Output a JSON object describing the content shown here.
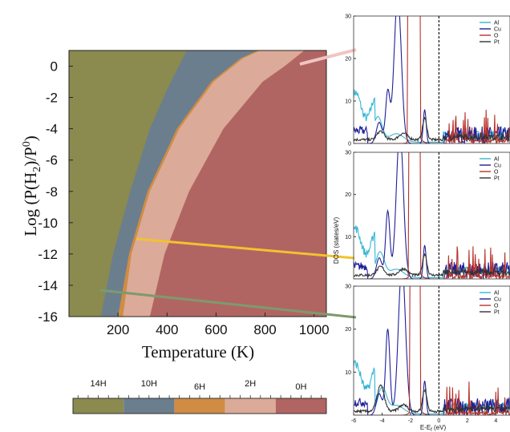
{
  "phase_diagram": {
    "ylabel": "Log (P(H2)/P0)",
    "ylabel_parts": {
      "main": "Log (P(H",
      "sub": "2",
      "mid": ")/P",
      "sup": "0",
      "end": ")"
    },
    "xlabel": "Temperature (K)",
    "x_ticks": [
      "200",
      "400",
      "600",
      "800",
      "1000"
    ],
    "y_ticks": [
      "0",
      "-2",
      "-4",
      "-6",
      "-8",
      "-10",
      "-12",
      "-14",
      "-16"
    ],
    "colorbar": [
      {
        "label": "14H",
        "color": "#8b8a4f"
      },
      {
        "label": "10H",
        "color": "#6b7e8e"
      },
      {
        "label": "6H",
        "color": "#d08c45"
      },
      {
        "label": "2H",
        "color": "#dcaa98"
      },
      {
        "label": "0H",
        "color": "#b16562"
      }
    ]
  },
  "dos_panels": {
    "ylabel": "DOS (states/eV)",
    "xlabel": "E-E",
    "xlabel_sub": "f",
    "xlabel_unit": " (eV)",
    "x_ticks": [
      "-6",
      "-4",
      "-2",
      "0",
      "2",
      "4"
    ],
    "y_ticks": [
      "0",
      "10",
      "20",
      "30"
    ],
    "legend": [
      {
        "name": "Al",
        "color": "#35b6d6"
      },
      {
        "name": "Cu",
        "color": "#1f1f99"
      },
      {
        "name": "O",
        "color": "#b8322a"
      },
      {
        "name": "Pt",
        "color": "#333333"
      }
    ]
  },
  "chart_data": [
    {
      "type": "area",
      "xlabel": "Temperature (K)",
      "ylabel": "Log (P(H2)/P0)",
      "xlim": [
        0,
        1050
      ],
      "ylim": [
        -16,
        1
      ],
      "series": [
        {
          "name": "14H",
          "color": "#8b8a4f"
        },
        {
          "name": "10H",
          "color": "#6b7e8e"
        },
        {
          "name": "6H",
          "color": "#d08c45"
        },
        {
          "name": "2H",
          "color": "#dcaa98"
        },
        {
          "name": "0H",
          "color": "#b16562"
        }
      ],
      "boundaries": [
        {
          "between": [
            "14H",
            "10H"
          ],
          "points": [
            [
              130,
              -16
            ],
            [
              180,
              -12
            ],
            [
              250,
              -8
            ],
            [
              330,
              -4
            ],
            [
              400,
              -1.5
            ],
            [
              480,
              1
            ]
          ]
        },
        {
          "between": [
            "10H",
            "6H"
          ],
          "points": [
            [
              200,
              -16
            ],
            [
              245,
              -12
            ],
            [
              320,
              -8
            ],
            [
              440,
              -4
            ],
            [
              580,
              -1
            ],
            [
              700,
              0.5
            ],
            [
              770,
              1
            ]
          ]
        },
        {
          "between": [
            "6H",
            "2H"
          ],
          "points": [
            [
              220,
              -16
            ],
            [
              255,
              -12
            ],
            [
              330,
              -8
            ],
            [
              450,
              -4
            ],
            [
              590,
              -1
            ],
            [
              710,
              0.5
            ],
            [
              780,
              1
            ]
          ]
        },
        {
          "between": [
            "2H",
            "0H"
          ],
          "points": [
            [
              330,
              -16
            ],
            [
              390,
              -12
            ],
            [
              490,
              -8
            ],
            [
              630,
              -4
            ],
            [
              790,
              -1
            ],
            [
              880,
              0
            ],
            [
              960,
              1
            ]
          ]
        }
      ]
    },
    {
      "type": "line",
      "xlabel": "E-Ef (eV)",
      "ylabel": "DOS (states/eV)",
      "xlim": [
        -6,
        5
      ],
      "ylim": [
        0,
        30
      ],
      "panels": 3,
      "series": [
        {
          "name": "Al",
          "color": "#35b6d6"
        },
        {
          "name": "Cu",
          "color": "#1f1f99"
        },
        {
          "name": "O",
          "color": "#b8322a"
        },
        {
          "name": "Pt",
          "color": "#333333"
        }
      ]
    }
  ]
}
